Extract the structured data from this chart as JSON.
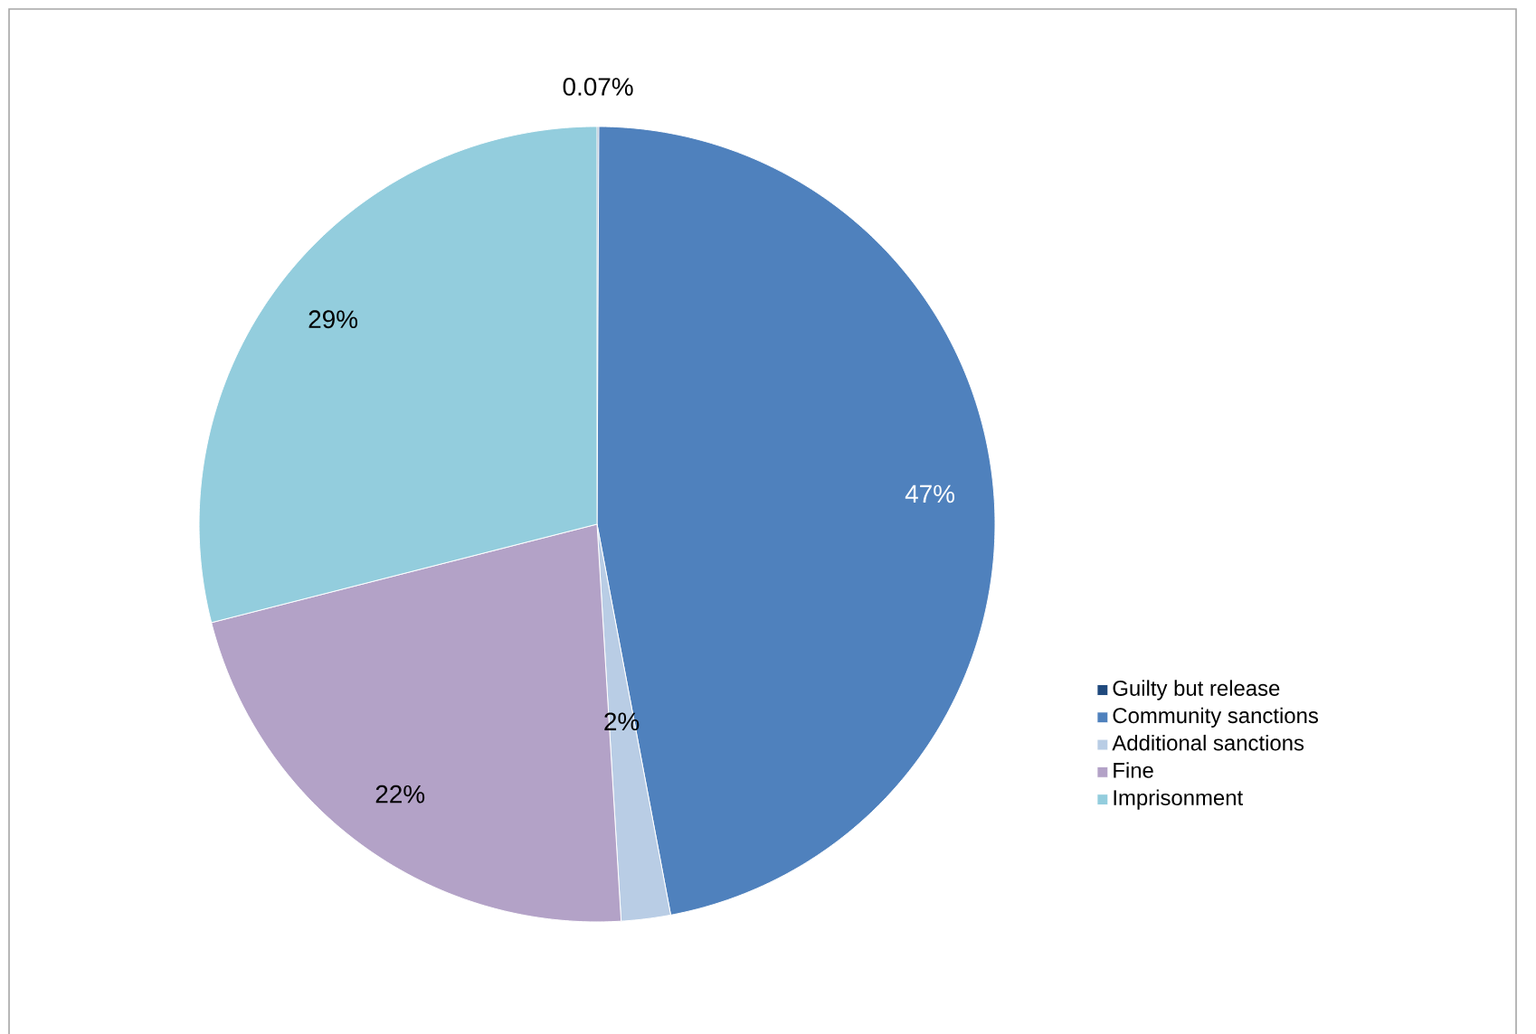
{
  "chart_data": {
    "type": "pie",
    "categories": [
      "Guilty but release",
      "Community sanctions",
      "Additional sanctions",
      "Fine",
      "Imprisonment"
    ],
    "values": [
      0.07,
      47,
      2,
      22,
      29
    ],
    "value_labels": [
      "0.07%",
      "47%",
      "2%",
      "22%",
      "29%"
    ],
    "colors": [
      "#1f497d",
      "#4f81bd",
      "#b9cde5",
      "#b3a2c7",
      "#93cddd"
    ],
    "legend": "right"
  }
}
